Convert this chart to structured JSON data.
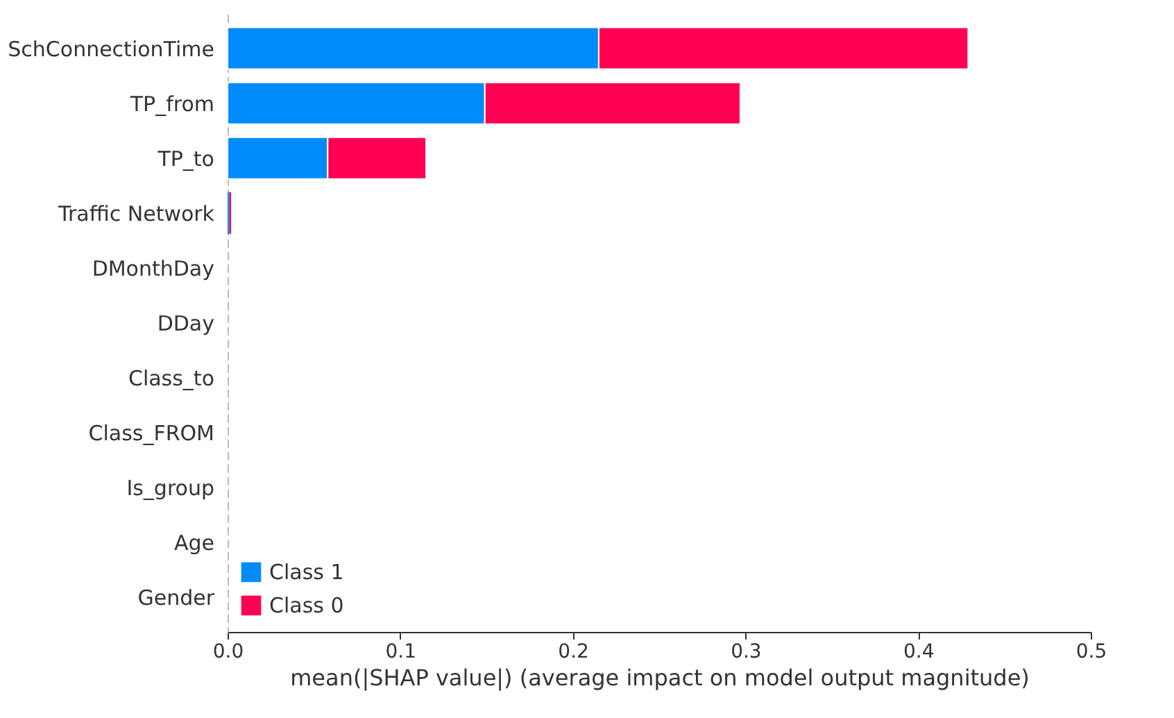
{
  "chart_data": {
    "type": "bar",
    "orientation": "horizontal",
    "stacked": true,
    "xlabel": "mean(|SHAP value|) (average impact on model output magnitude)",
    "categories": [
      "SchConnectionTime",
      "TP_from",
      "TP_to",
      "Traffic Network",
      "DMonthDay",
      "DDay",
      "Class_to",
      "Class_FROM",
      "Is_group",
      "Age",
      "Gender"
    ],
    "series": [
      {
        "name": "Class 1",
        "color": "#008bfb",
        "values": [
          0.215,
          0.149,
          0.058,
          0.001,
          0,
          0,
          0,
          0,
          0,
          0,
          0
        ]
      },
      {
        "name": "Class 0",
        "color": "#ff0052",
        "values": [
          0.214,
          0.148,
          0.057,
          0.001,
          0,
          0,
          0,
          0,
          0,
          0,
          0
        ]
      }
    ],
    "xlim": [
      0,
      0.5
    ],
    "xticks": [
      {
        "value": 0,
        "label": "0.0"
      },
      0.1,
      0.2,
      0.3,
      0.4,
      0.5
    ],
    "legend": "bottom left",
    "grid": false
  }
}
